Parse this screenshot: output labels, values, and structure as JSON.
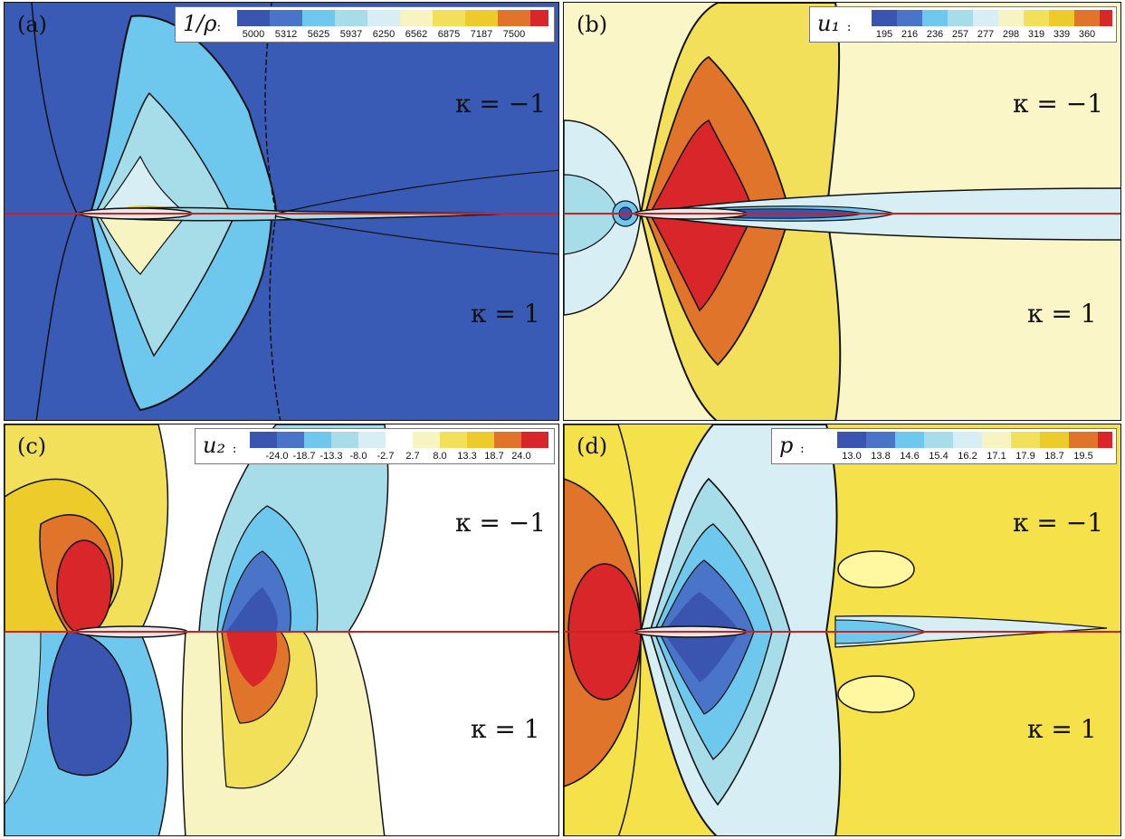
{
  "panels": [
    {
      "label": "(a)",
      "variable": "1/ρ",
      "legend_colon": ":",
      "legend_ticks": [
        "5000",
        "5312",
        "5625",
        "5937",
        "6250",
        "6562",
        "6875",
        "7187",
        "7500"
      ],
      "kappa_upper": "κ = −1",
      "kappa_lower": "κ = 1",
      "background": "#3a5bb5"
    },
    {
      "label": "(b)",
      "variable": "u₁",
      "legend_colon": ":",
      "legend_ticks": [
        "195",
        "216",
        "236",
        "257",
        "277",
        "298",
        "319",
        "339",
        "360"
      ],
      "kappa_upper": "κ = −1",
      "kappa_lower": "κ = 1",
      "background": "#faf6c8"
    },
    {
      "label": "(c)",
      "variable": "u₂",
      "legend_colon": ":",
      "legend_ticks": [
        "-24.0",
        "-18.7",
        "-13.3",
        "-8.0",
        "-2.7",
        "2.7",
        "8.0",
        "13.3",
        "18.7",
        "24.0"
      ],
      "kappa_upper": "κ = −1",
      "kappa_lower": "κ = 1",
      "background": "#ffffff"
    },
    {
      "label": "(d)",
      "variable": "p",
      "legend_colon": ":",
      "legend_ticks": [
        "13.0",
        "13.8",
        "14.6",
        "15.4",
        "16.2",
        "17.1",
        "17.9",
        "18.7",
        "19.5"
      ],
      "kappa_upper": "κ = −1",
      "kappa_lower": "κ = 1",
      "background": "#f5e14a"
    }
  ],
  "colormap": [
    "#3a55b0",
    "#4a74c8",
    "#6ec8ee",
    "#a6dde9",
    "#d6eef4",
    "#f8f4c2",
    "#f2e05a",
    "#eccb2a",
    "#e0742a",
    "#d8262a"
  ],
  "centerline_color": "#cc2222"
}
